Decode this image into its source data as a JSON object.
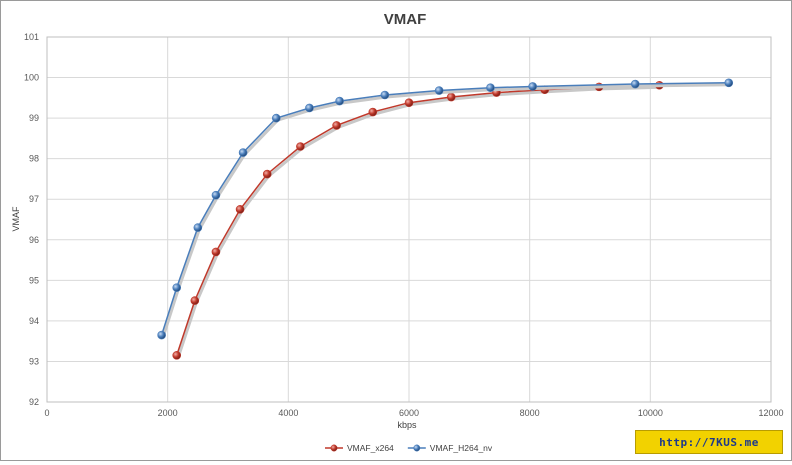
{
  "chart_data": {
    "type": "line",
    "title": "VMAF",
    "xlabel": "kbps",
    "ylabel": "VMAF",
    "xlim": [
      0,
      12000
    ],
    "ylim": [
      92,
      101
    ],
    "xticks": [
      0,
      2000,
      4000,
      6000,
      8000,
      10000,
      12000
    ],
    "yticks": [
      92,
      93,
      94,
      95,
      96,
      97,
      98,
      99,
      100,
      101
    ],
    "grid": true,
    "legend_position": "bottom",
    "series": [
      {
        "name": "VMAF_x264",
        "color": "#c0392b",
        "points": [
          [
            2150,
            93.15
          ],
          [
            2450,
            94.5
          ],
          [
            2800,
            95.7
          ],
          [
            3200,
            96.75
          ],
          [
            3650,
            97.62
          ],
          [
            4200,
            98.3
          ],
          [
            4800,
            98.82
          ],
          [
            5400,
            99.15
          ],
          [
            6000,
            99.38
          ],
          [
            6700,
            99.52
          ],
          [
            7450,
            99.63
          ],
          [
            8250,
            99.7
          ],
          [
            9150,
            99.77
          ],
          [
            10150,
            99.81
          ]
        ]
      },
      {
        "name": "VMAF_H264_nv",
        "color": "#4a7ebb",
        "points": [
          [
            1900,
            93.65
          ],
          [
            2150,
            94.82
          ],
          [
            2500,
            96.3
          ],
          [
            2800,
            97.1
          ],
          [
            3250,
            98.15
          ],
          [
            3800,
            99.0
          ],
          [
            4350,
            99.25
          ],
          [
            4850,
            99.42
          ],
          [
            5600,
            99.57
          ],
          [
            6500,
            99.68
          ],
          [
            7350,
            99.75
          ],
          [
            8050,
            99.78
          ],
          [
            9750,
            99.84
          ],
          [
            11300,
            99.87
          ]
        ]
      }
    ]
  },
  "watermark": {
    "text": "http://7KUS.me"
  }
}
